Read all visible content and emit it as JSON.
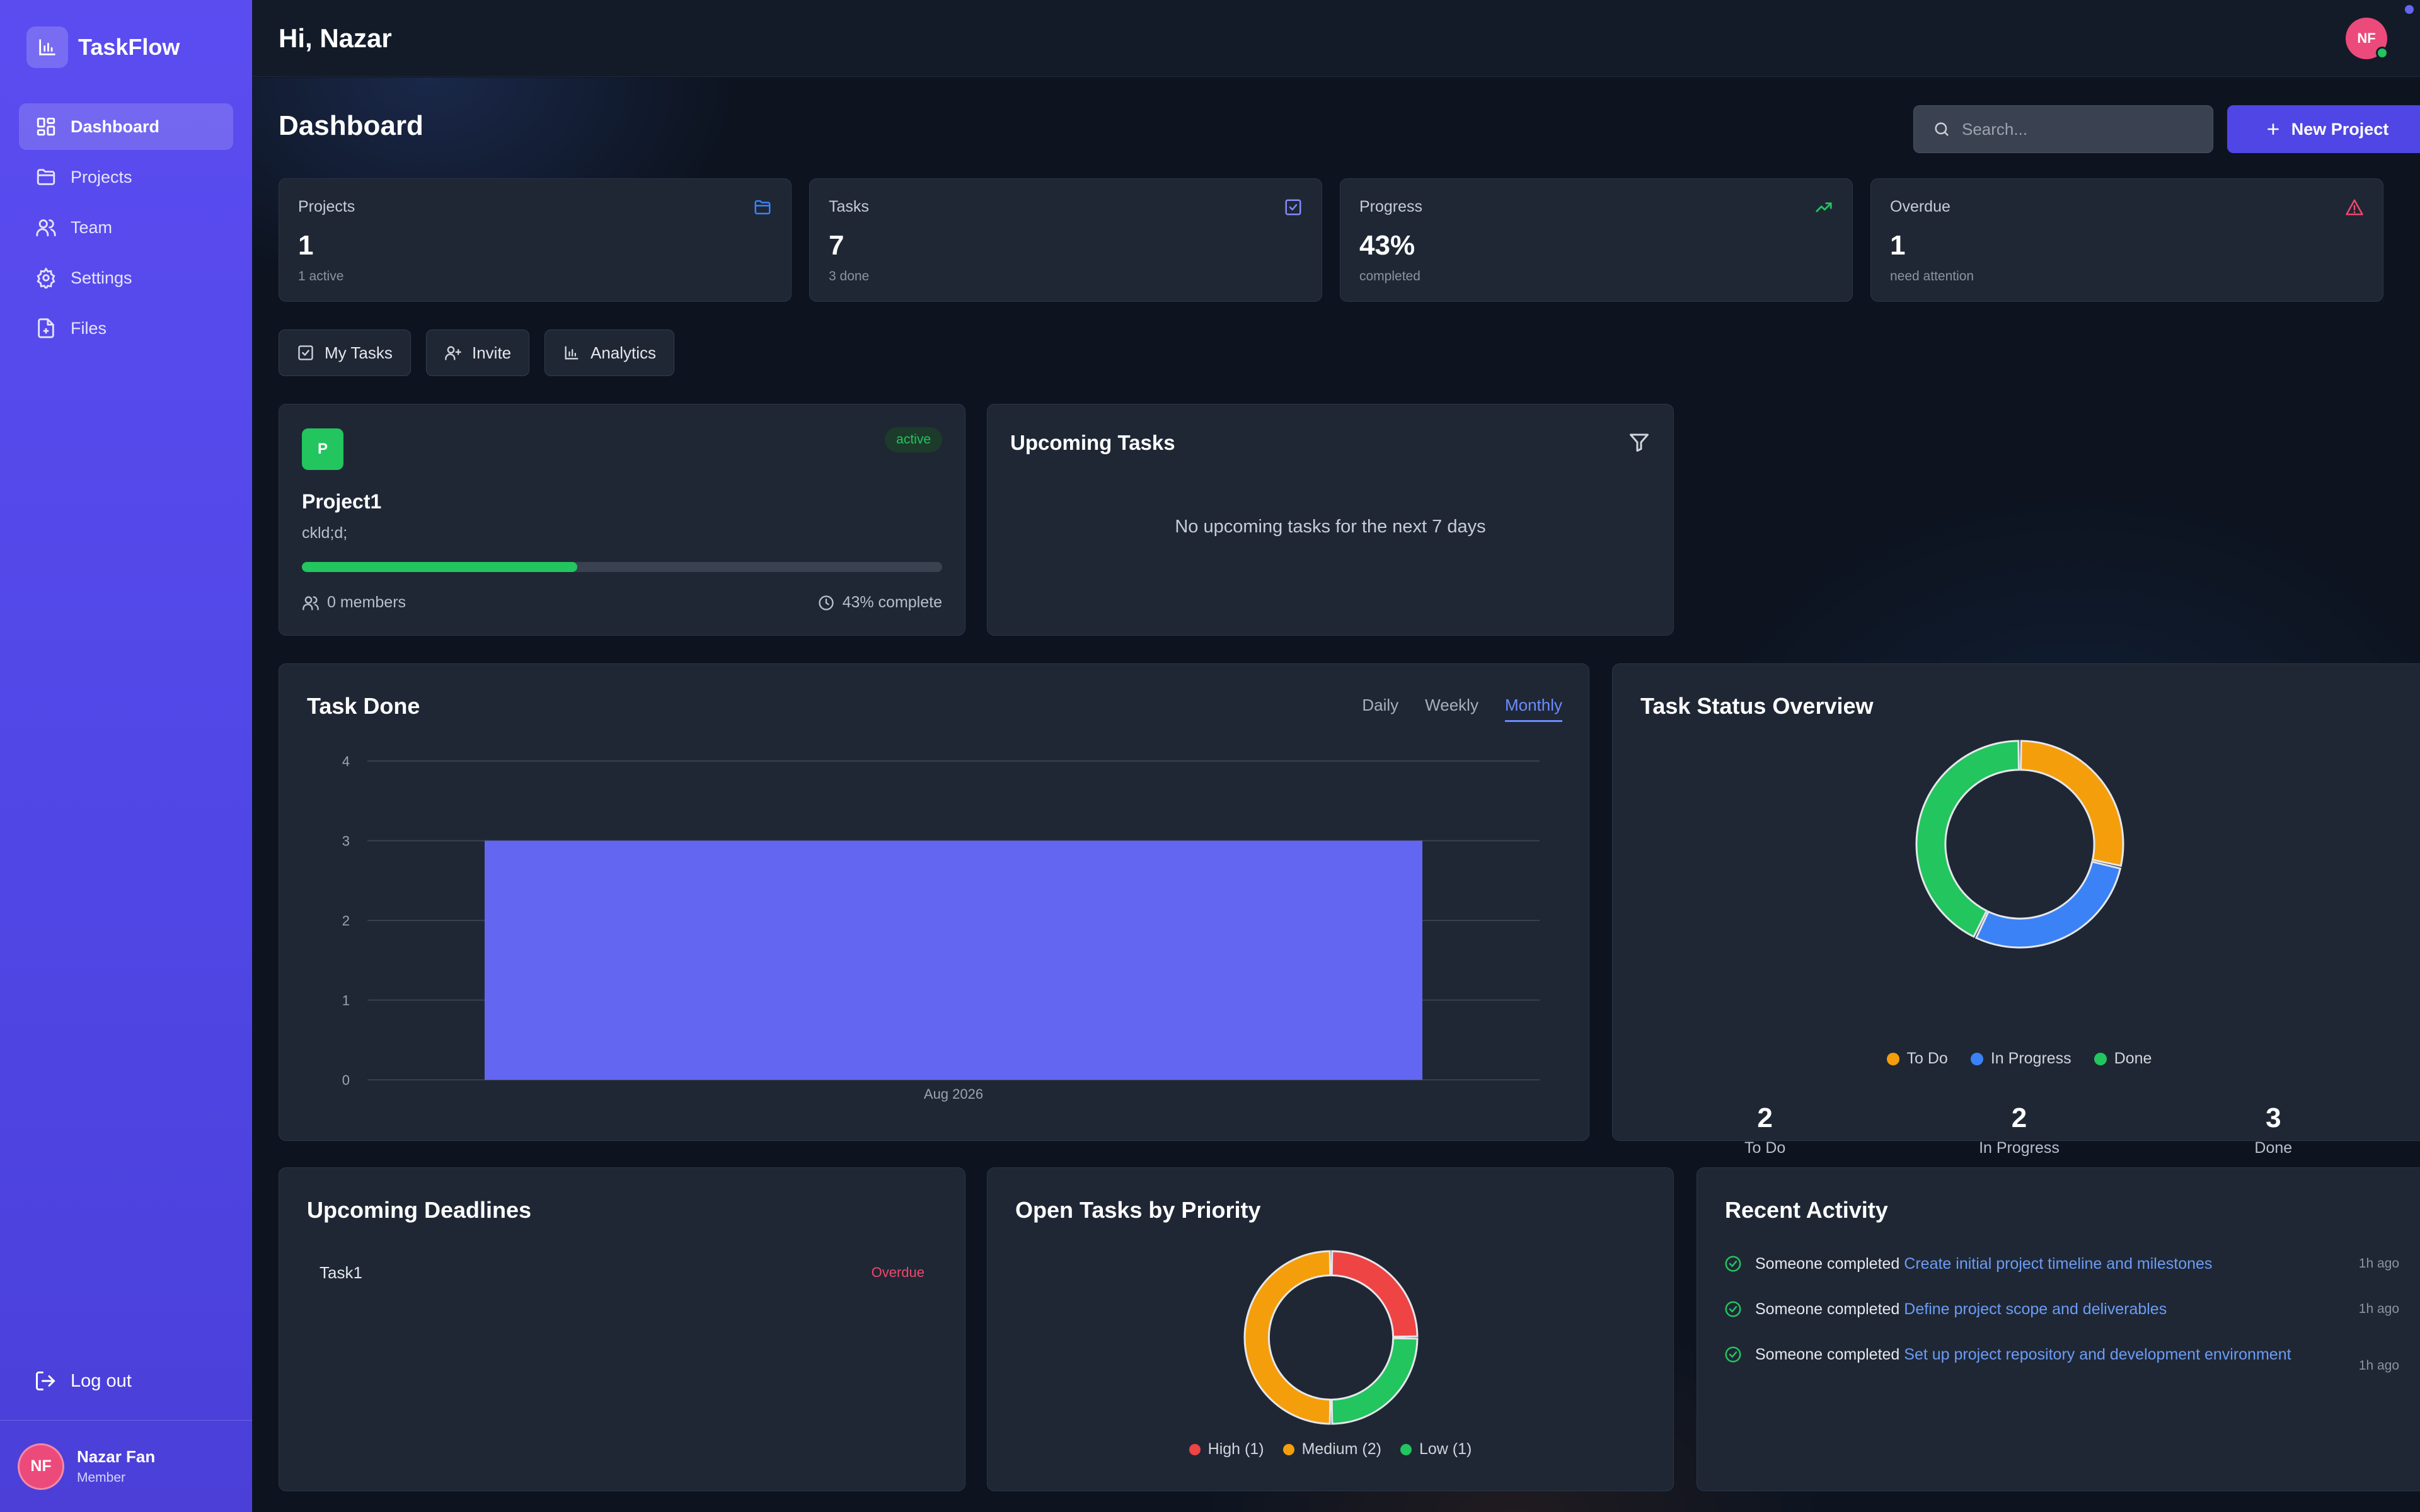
{
  "app": {
    "name": "TaskFlow"
  },
  "sidebar": {
    "items": [
      {
        "label": "Dashboard",
        "icon": "dashboard-icon"
      },
      {
        "label": "Projects",
        "icon": "folder-icon"
      },
      {
        "label": "Team",
        "icon": "users-icon"
      },
      {
        "label": "Settings",
        "icon": "gear-icon"
      },
      {
        "label": "Files",
        "icon": "file-icon"
      }
    ],
    "logout_label": "Log out",
    "user": {
      "initials": "NF",
      "name": "Nazar Fan",
      "role": "Member"
    }
  },
  "topbar": {
    "greeting": "Hi, Nazar",
    "avatar_initials": "NF"
  },
  "page": {
    "title": "Dashboard",
    "search_placeholder": "Search...",
    "new_project_label": "New Project"
  },
  "stats": [
    {
      "label": "Projects",
      "value": "1",
      "sub": "1 active",
      "icon": "folder-icon",
      "color": "#3b82f6"
    },
    {
      "label": "Tasks",
      "value": "7",
      "sub": "3 done",
      "icon": "checkbox-icon",
      "color": "#818cf8"
    },
    {
      "label": "Progress",
      "value": "43%",
      "sub": "completed",
      "icon": "trending-up-icon",
      "color": "#22c55e"
    },
    {
      "label": "Overdue",
      "value": "1",
      "sub": "need attention",
      "icon": "alert-triangle-icon",
      "color": "#f0476b"
    }
  ],
  "quick_actions": [
    {
      "label": "My Tasks",
      "icon": "checkbox-icon"
    },
    {
      "label": "Invite",
      "icon": "user-plus-icon"
    },
    {
      "label": "Analytics",
      "icon": "bar-chart-icon"
    }
  ],
  "project": {
    "badge": "P",
    "status": "active",
    "name": "Project1",
    "description": "ckld;d;",
    "progress": 0.43,
    "members_text": "0 members",
    "complete_text": "43% complete"
  },
  "upcoming_tasks": {
    "title": "Upcoming Tasks",
    "empty_message": "No upcoming tasks for the next 7 days"
  },
  "task_done": {
    "title": "Task Done",
    "tabs": [
      "Daily",
      "Weekly",
      "Monthly"
    ],
    "active_tab": "Monthly"
  },
  "task_status": {
    "title": "Task Status Overview",
    "legend": [
      {
        "label": "To Do",
        "color": "#f59e0b"
      },
      {
        "label": "In Progress",
        "color": "#3b82f6"
      },
      {
        "label": "Done",
        "color": "#22c55e"
      }
    ],
    "counts": [
      {
        "value": "2",
        "label": "To Do"
      },
      {
        "value": "2",
        "label": "In Progress"
      },
      {
        "value": "3",
        "label": "Done"
      }
    ]
  },
  "deadlines": {
    "title": "Upcoming Deadlines",
    "items": [
      {
        "name": "Task1",
        "status": "Overdue"
      }
    ]
  },
  "priority": {
    "title": "Open Tasks by Priority",
    "legend": [
      {
        "label": "High (1)",
        "color": "#ef4444"
      },
      {
        "label": "Medium (2)",
        "color": "#f59e0b"
      },
      {
        "label": "Low (1)",
        "color": "#22c55e"
      }
    ]
  },
  "activity": {
    "title": "Recent Activity",
    "items": [
      {
        "actor": "Someone",
        "verb": "completed",
        "target": "Create initial project timeline and milestones",
        "time": "1h ago"
      },
      {
        "actor": "Someone",
        "verb": "completed",
        "target": "Define project scope and deliverables",
        "time": "1h ago"
      },
      {
        "actor": "Someone",
        "verb": "completed",
        "target": "Set up project repository and development environment",
        "time": "1h ago"
      }
    ]
  },
  "chart_data": [
    {
      "type": "bar",
      "title": "Task Done",
      "categories": [
        "Aug 2026"
      ],
      "values": [
        3
      ],
      "ylim": [
        0,
        4
      ],
      "yticks": [
        "0",
        "1",
        "2",
        "3",
        "4"
      ],
      "grid": true,
      "color": "#6366f1"
    },
    {
      "type": "pie",
      "title": "Task Status Overview",
      "labels": [
        "To Do",
        "In Progress",
        "Done"
      ],
      "values": [
        2,
        2,
        3
      ],
      "colors": [
        "#f59e0b",
        "#3b82f6",
        "#22c55e"
      ],
      "legend": "bottom"
    },
    {
      "type": "pie",
      "title": "Open Tasks by Priority",
      "labels": [
        "High",
        "Low",
        "Medium"
      ],
      "values": [
        1,
        1,
        2
      ],
      "colors": [
        "#ef4444",
        "#22c55e",
        "#f59e0b"
      ],
      "legend": "bottom"
    }
  ]
}
